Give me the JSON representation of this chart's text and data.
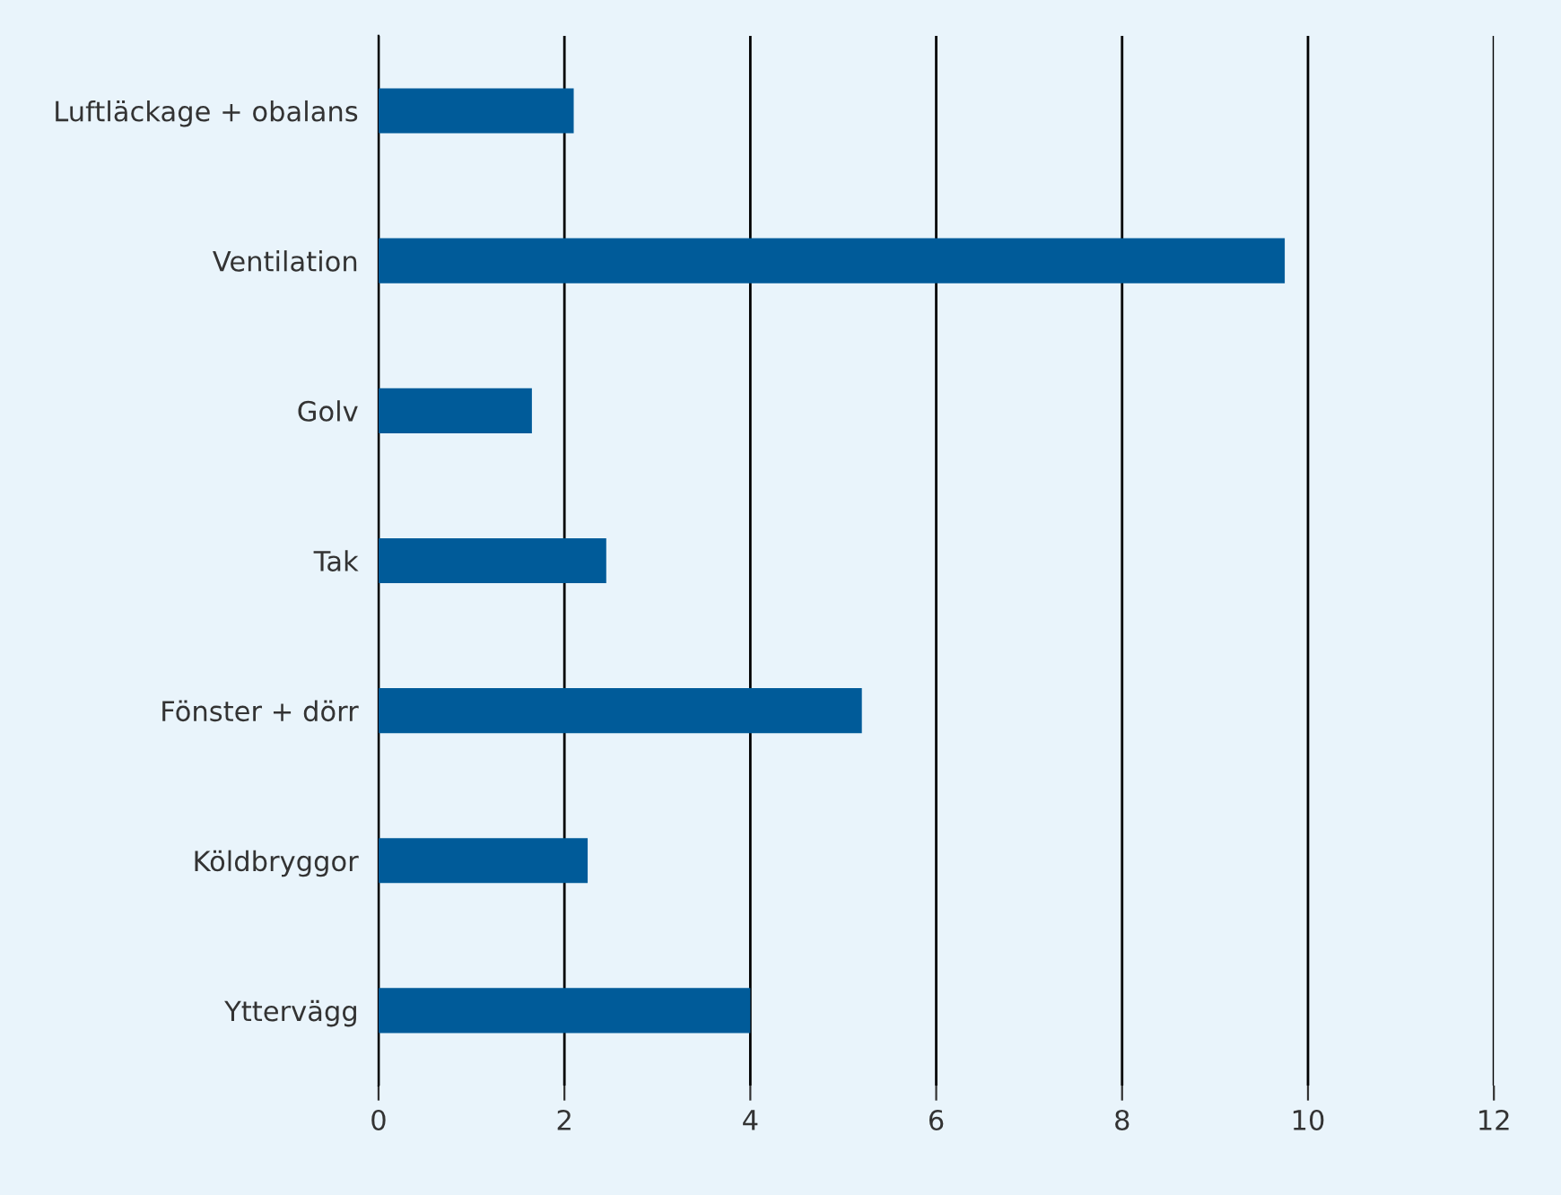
{
  "chart_data": {
    "type": "bar",
    "orientation": "horizontal",
    "categories": [
      "Luftläckage + obalans",
      "Ventilation",
      "Golv",
      "Tak",
      "Fönster + dörr",
      "Köldbryggor",
      "Yttervägg"
    ],
    "values": [
      2.1,
      9.75,
      1.65,
      2.45,
      5.2,
      2.25,
      4.0
    ],
    "color": "#005b99",
    "xlim": [
      0,
      12
    ],
    "xticks": [
      0,
      2,
      4,
      6,
      8,
      10,
      12
    ],
    "grid": "x"
  }
}
